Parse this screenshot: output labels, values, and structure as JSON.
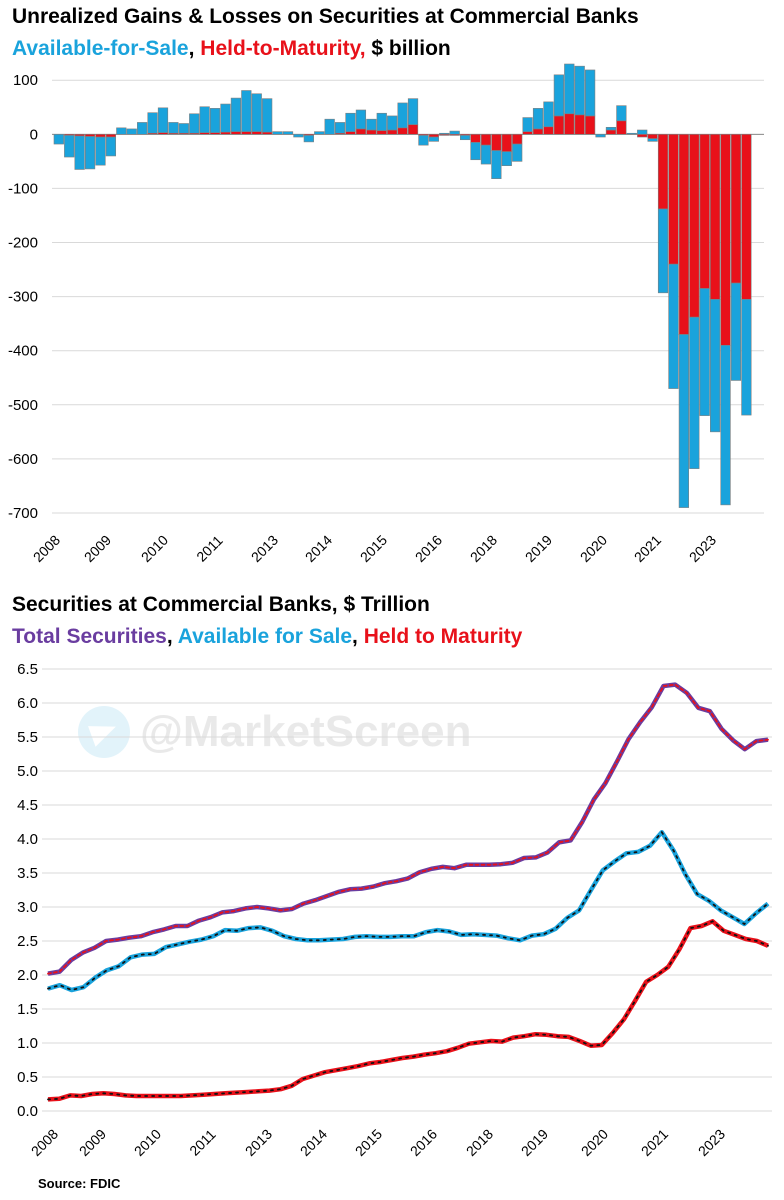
{
  "chart1": {
    "title": "Unrealized Gains & Losses on Securities at Commercial Banks",
    "subtitle_afs": "Available-for-Sale",
    "subtitle_sep": ", ",
    "subtitle_htm": "Held-to-Maturity,",
    "subtitle_units": " $ billion"
  },
  "chart2": {
    "title": "Securities at Commercial Banks, $ Trillion",
    "subtitle_total": "Total Securities",
    "subtitle_sep1": ", ",
    "subtitle_afs": "Available for Sale",
    "subtitle_sep2": ", ",
    "subtitle_htm": "Held to Maturity"
  },
  "watermark": "@MarketScreen",
  "source": "Source: FDIC",
  "colors": {
    "afs": "#1aa3dc",
    "htm": "#e8111a",
    "total": "#6a3da0"
  },
  "chart_data": [
    {
      "type": "bar",
      "stacked": true,
      "title": "Unrealized Gains & Losses on Securities at Commercial Banks",
      "ylabel": "$ billion",
      "ylim": [
        -700,
        130
      ],
      "yticks": [
        "100",
        "0",
        "-100",
        "-200",
        "-300",
        "-400",
        "-500",
        "-600",
        "-700"
      ],
      "ytick_values": [
        100,
        0,
        -100,
        -200,
        -300,
        -400,
        -500,
        -600,
        -700
      ],
      "xtick_labels": [
        "2008",
        "2009",
        "2010",
        "2011",
        "2013",
        "2014",
        "2015",
        "2016",
        "2018",
        "2019",
        "2020",
        "2021",
        "2023"
      ],
      "xtick_index": [
        0,
        5,
        13,
        21,
        31,
        39,
        47,
        55,
        65,
        73,
        81,
        89,
        97
      ],
      "series": [
        {
          "name": "Available-for-Sale",
          "values": [
            -18,
            -40,
            -62,
            -60,
            -52,
            -35,
            12,
            10,
            22,
            38,
            46,
            20,
            18,
            36,
            48,
            45,
            52,
            62,
            76,
            70,
            62,
            5,
            5,
            -5,
            -12,
            5,
            28,
            20,
            34,
            35,
            20,
            32,
            26,
            46,
            48,
            -18,
            -8,
            2,
            6,
            -8,
            -32,
            -35,
            -52,
            -26,
            -32,
            26,
            38,
            46,
            76,
            92,
            90,
            85,
            -5,
            5,
            28,
            2,
            8,
            -5,
            -155,
            -230,
            -320,
            -280,
            -235,
            -245,
            -295,
            -180,
            -214
          ],
          "offset_start": 0
        },
        {
          "name": "Held-to-Maturity",
          "values": [
            0,
            -2,
            -3,
            -4,
            -5,
            -5,
            0,
            0,
            0,
            2,
            3,
            2,
            2,
            2,
            3,
            3,
            4,
            5,
            5,
            5,
            4,
            0,
            0,
            0,
            -2,
            0,
            0,
            2,
            5,
            10,
            8,
            7,
            8,
            12,
            18,
            -2,
            -5,
            -2,
            -2,
            -2,
            -15,
            -20,
            -30,
            -32,
            -18,
            5,
            10,
            14,
            34,
            38,
            36,
            34,
            0,
            8,
            25,
            0,
            -5,
            -8,
            -138,
            -240,
            -370,
            -338,
            -285,
            -305,
            -390,
            -275,
            -305
          ],
          "offset_start": 0
        }
      ]
    },
    {
      "type": "line",
      "title": "Securities at Commercial Banks, $ Trillion",
      "ylim": [
        0.0,
        6.5
      ],
      "yticks": [
        "6.5",
        "6.0",
        "5.5",
        "5.0",
        "4.5",
        "4.0",
        "3.5",
        "3.0",
        "2.5",
        "2.0",
        "1.5",
        "1.0",
        "0.5",
        "0.0"
      ],
      "ytick_values": [
        6.5,
        6.0,
        5.5,
        5.0,
        4.5,
        4.0,
        3.5,
        3.0,
        2.5,
        2.0,
        1.5,
        1.0,
        0.5,
        0.0
      ],
      "xtick_labels": [
        "2008",
        "2009",
        "2010",
        "2011",
        "2013",
        "2014",
        "2015",
        "2016",
        "2018",
        "2019",
        "2020",
        "2021",
        "2023"
      ],
      "xtick_index": [
        0,
        5,
        13,
        21,
        31,
        39,
        47,
        55,
        65,
        73,
        81,
        89,
        97
      ],
      "series": [
        {
          "name": "Total Securities",
          "values": [
            2.02,
            2.05,
            2.22,
            2.33,
            2.4,
            2.5,
            2.52,
            2.55,
            2.57,
            2.63,
            2.67,
            2.72,
            2.72,
            2.8,
            2.85,
            2.92,
            2.94,
            2.98,
            3.0,
            2.98,
            2.95,
            2.97,
            3.05,
            3.1,
            3.16,
            3.22,
            3.26,
            3.27,
            3.3,
            3.35,
            3.38,
            3.42,
            3.51,
            3.56,
            3.59,
            3.57,
            3.62,
            3.62,
            3.62,
            3.63,
            3.65,
            3.72,
            3.73,
            3.8,
            3.95,
            3.98,
            4.25,
            4.58,
            4.82,
            5.14,
            5.47,
            5.72,
            5.94,
            6.25,
            6.27,
            6.15,
            5.93,
            5.88,
            5.62,
            5.45,
            5.32,
            5.44,
            5.46
          ]
        },
        {
          "name": "Available for Sale",
          "values": [
            1.8,
            1.85,
            1.78,
            1.82,
            1.96,
            2.07,
            2.13,
            2.26,
            2.3,
            2.31,
            2.41,
            2.45,
            2.49,
            2.52,
            2.57,
            2.66,
            2.65,
            2.69,
            2.7,
            2.65,
            2.57,
            2.53,
            2.51,
            2.51,
            2.52,
            2.53,
            2.56,
            2.57,
            2.56,
            2.56,
            2.57,
            2.57,
            2.63,
            2.66,
            2.64,
            2.59,
            2.6,
            2.59,
            2.58,
            2.54,
            2.51,
            2.58,
            2.6,
            2.68,
            2.84,
            2.95,
            3.25,
            3.54,
            3.67,
            3.79,
            3.81,
            3.9,
            4.1,
            3.83,
            3.48,
            3.19,
            3.09,
            2.95,
            2.85,
            2.75,
            2.91,
            3.05
          ]
        },
        {
          "name": "Held to Maturity",
          "values": [
            0.17,
            0.18,
            0.23,
            0.22,
            0.25,
            0.26,
            0.25,
            0.23,
            0.22,
            0.22,
            0.22,
            0.22,
            0.22,
            0.23,
            0.24,
            0.25,
            0.26,
            0.27,
            0.28,
            0.29,
            0.3,
            0.32,
            0.37,
            0.47,
            0.52,
            0.57,
            0.6,
            0.63,
            0.66,
            0.7,
            0.72,
            0.75,
            0.78,
            0.8,
            0.83,
            0.85,
            0.88,
            0.93,
            0.99,
            1.01,
            1.03,
            1.02,
            1.08,
            1.1,
            1.13,
            1.12,
            1.1,
            1.09,
            1.03,
            0.96,
            0.97,
            1.15,
            1.35,
            1.62,
            1.9,
            2.0,
            2.12,
            2.38,
            2.69,
            2.72,
            2.79,
            2.65,
            2.59,
            2.53,
            2.5,
            2.43
          ]
        }
      ]
    }
  ]
}
